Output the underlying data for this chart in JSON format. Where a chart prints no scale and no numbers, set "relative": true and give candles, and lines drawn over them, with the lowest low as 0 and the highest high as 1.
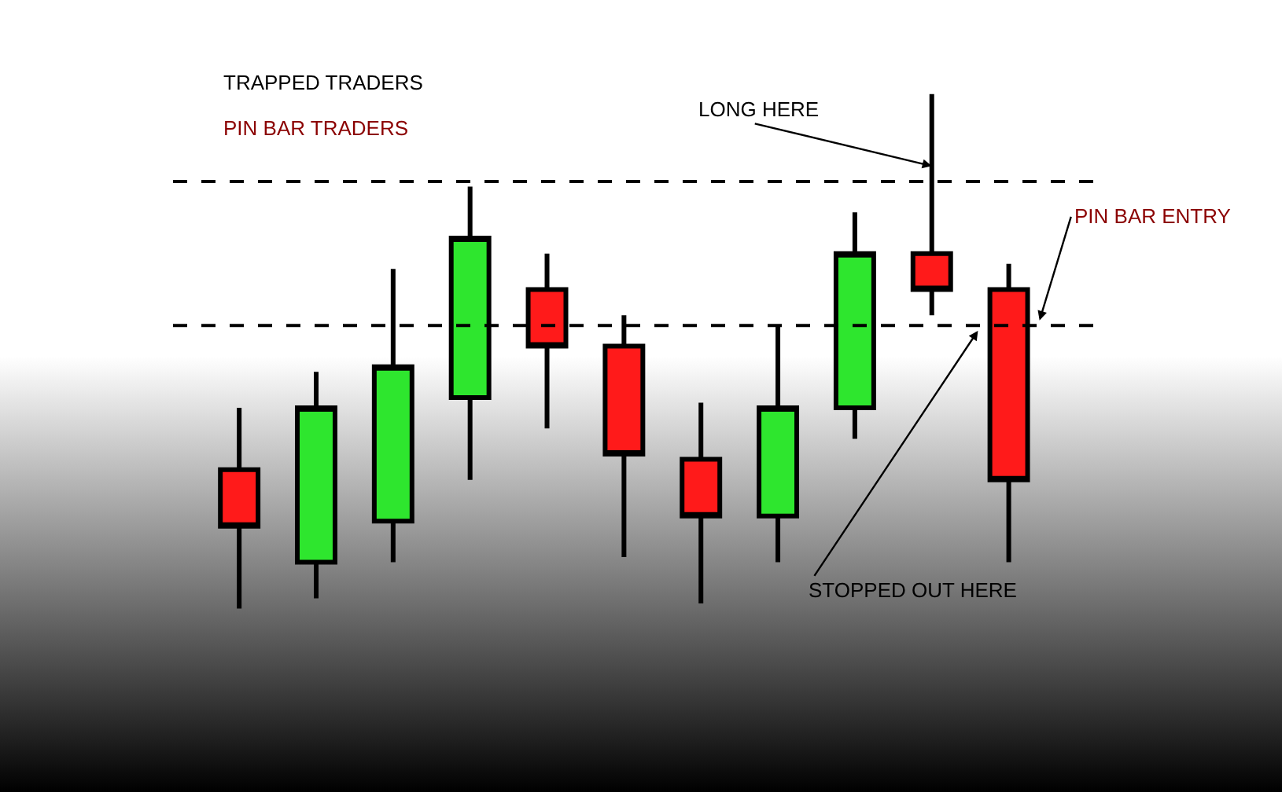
{
  "chart_data": {
    "type": "candlestick",
    "relative": true,
    "categories": [
      null,
      null,
      null,
      null,
      null,
      null,
      null,
      null,
      null,
      null,
      null
    ],
    "ohlc": [
      [
        0.27,
        0.39,
        0.0,
        0.16
      ],
      [
        0.09,
        0.46,
        0.02,
        0.39
      ],
      [
        0.17,
        0.66,
        0.09,
        0.47
      ],
      [
        0.41,
        0.82,
        0.25,
        0.72
      ],
      [
        0.62,
        0.69,
        0.35,
        0.51
      ],
      [
        0.51,
        0.57,
        0.1,
        0.3
      ],
      [
        0.29,
        0.4,
        0.01,
        0.18
      ],
      [
        0.18,
        0.55,
        0.09,
        0.39
      ],
      [
        0.39,
        0.77,
        0.33,
        0.69
      ],
      [
        0.69,
        1.0,
        0.57,
        0.62
      ],
      [
        0.62,
        0.67,
        0.09,
        0.25
      ]
    ],
    "colors": [
      "#ff1a1a",
      "#2ee62e",
      "#2ee62e",
      "#2ee62e",
      "#ff1a1a",
      "#ff1a1a",
      "#ff1a1a",
      "#2ee62e",
      "#2ee62e",
      "#ff1a1a",
      "#ff1a1a"
    ],
    "ref_lines": [
      {
        "axis": "y",
        "value": 0.83,
        "color": "#000000",
        "line_style": "dashed"
      },
      {
        "axis": "y",
        "value": 0.55,
        "color": "#000000",
        "line_style": "dashed"
      }
    ],
    "annotations": [
      "TRAPPED TRADERS",
      "PIN BAR TRADERS",
      "LONG HERE",
      "STOPPED OUT HERE",
      "PIN BAR ENTRY"
    ],
    "grid": false,
    "legend": false
  }
}
